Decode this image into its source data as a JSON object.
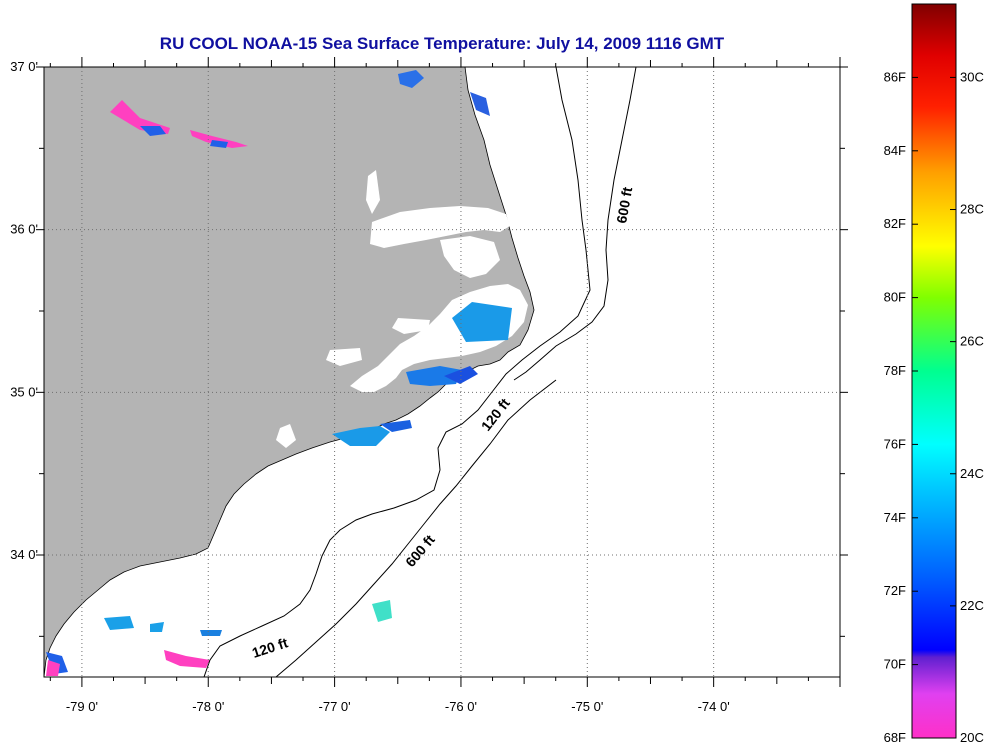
{
  "title": "RU COOL  NOAA-15  Sea Surface Temperature:  July 14, 2009 1116 GMT",
  "map": {
    "lon_range": [
      -79.3,
      -73.0
    ],
    "lat_range": [
      33.25,
      37.0
    ],
    "lat_ticks": [
      {
        "value": 37,
        "label": "37 0'"
      },
      {
        "value": 36,
        "label": "36 0'"
      },
      {
        "value": 35,
        "label": "35 0'"
      },
      {
        "value": 34,
        "label": "34 0'"
      }
    ],
    "lon_ticks": [
      {
        "value": -79,
        "label": "-79 0'"
      },
      {
        "value": -78,
        "label": "-78 0'"
      },
      {
        "value": -77,
        "label": "-77 0'"
      },
      {
        "value": -76,
        "label": "-76 0'"
      },
      {
        "value": -75,
        "label": "-75 0'"
      },
      {
        "value": -74,
        "label": "-74 0'"
      }
    ],
    "grid": true,
    "land_color": "#b4b4b4",
    "contour_labels": [
      "600 ft",
      "120 ft",
      "600 ft",
      "120 ft"
    ]
  },
  "colorbar": {
    "min_f": 68,
    "max_f": 88,
    "f_labels": [
      "86F",
      "84F",
      "82F",
      "80F",
      "78F",
      "76F",
      "74F",
      "72F",
      "70F",
      "68F"
    ],
    "c_labels": [
      "30C",
      "28C",
      "26C",
      "24C",
      "22C",
      "20C"
    ],
    "colors": [
      "#ff30c8",
      "#ff40e0",
      "#8020d0",
      "#0000ff",
      "#0090ff",
      "#00ffff",
      "#00ff80",
      "#80ff00",
      "#ffff00",
      "#ffa000",
      "#ff3000",
      "#ff0000",
      "#a00000",
      "#800000"
    ]
  }
}
